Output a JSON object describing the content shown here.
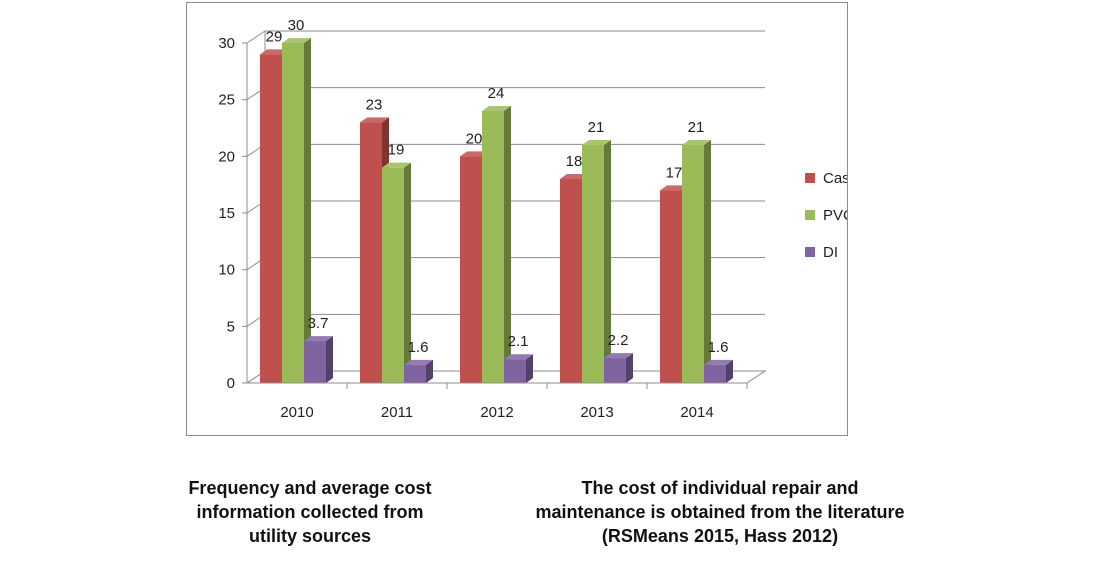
{
  "chart_data": {
    "type": "bar",
    "title": "",
    "xlabel": "",
    "ylabel": "",
    "categories": [
      "2010",
      "2011",
      "2012",
      "2013",
      "2014"
    ],
    "series": [
      {
        "name": "Cast Iron",
        "values": [
          29,
          23,
          20,
          18,
          17
        ],
        "labels": [
          "29",
          "23",
          "20",
          "18",
          "17"
        ],
        "color": "#c0504d"
      },
      {
        "name": "PVC",
        "values": [
          30,
          19,
          24,
          21,
          21
        ],
        "labels": [
          "30",
          "19",
          "24",
          "21",
          "21"
        ],
        "color": "#9bbb59"
      },
      {
        "name": "DI",
        "values": [
          3.7,
          1.6,
          2.1,
          2.2,
          1.6
        ],
        "labels": [
          "3.7",
          "1.6",
          "2.1",
          "2.2",
          "1.6"
        ],
        "color": "#8064a2"
      }
    ],
    "ylim": [
      0,
      30
    ],
    "yticks": [
      "0",
      "5",
      "10",
      "15",
      "20",
      "25",
      "30"
    ],
    "grid": true,
    "legend": "right",
    "style": "3d-clustered"
  },
  "captions": {
    "left": [
      "Frequency and average cost",
      "information collected from",
      "utility sources"
    ],
    "right": [
      "The cost of individual repair and",
      "maintenance is obtained from the literature",
      "(RSMeans 2015, Hass 2012)"
    ]
  }
}
